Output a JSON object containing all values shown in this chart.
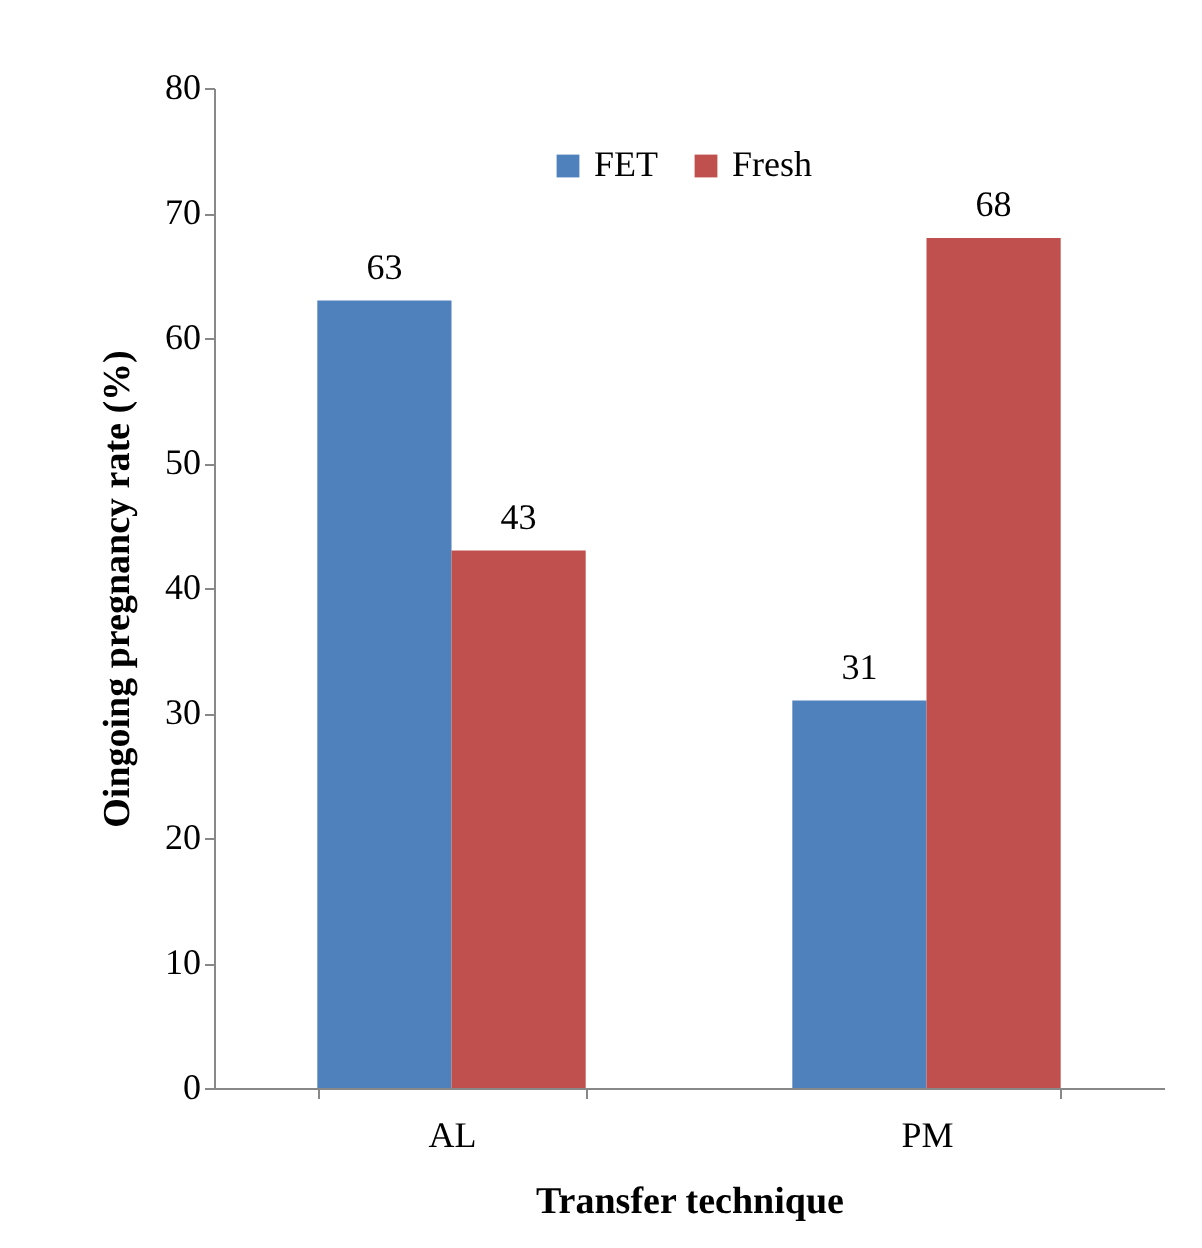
{
  "chart_data": {
    "type": "bar",
    "xlabel": "Transfer technique",
    "ylabel": "Oingoing pregnancy rate (%)",
    "categories": [
      "AL",
      "PM"
    ],
    "series": [
      {
        "name": "FET",
        "color": "#4f81bd",
        "values": [
          63,
          31
        ]
      },
      {
        "name": "Fresh",
        "color": "#c0504d",
        "values": [
          43,
          68
        ]
      }
    ],
    "ylim": [
      0,
      80
    ],
    "yticks": [
      0,
      10,
      20,
      30,
      40,
      50,
      60,
      70,
      80
    ],
    "grid": false,
    "legend": "top right",
    "data_labels": true
  }
}
